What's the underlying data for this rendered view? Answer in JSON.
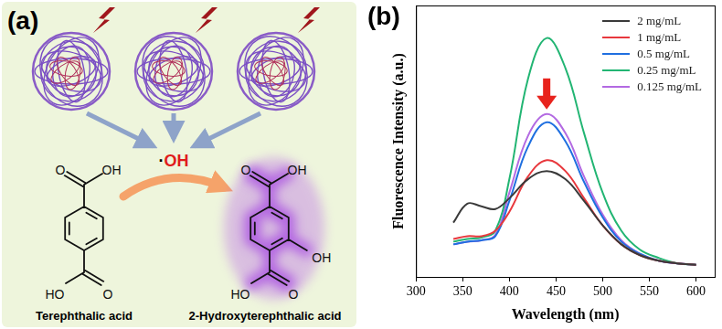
{
  "diagram": {
    "panel_label": "(a)",
    "radical": "·OH",
    "reactant": {
      "name": "Terephthalic acid",
      "atoms": [
        "O",
        "OH",
        "O",
        "HO"
      ]
    },
    "product": {
      "name": "2-Hydroxyterephthalic acid",
      "atoms": [
        "O",
        "OH",
        "O",
        "HO",
        "OH"
      ]
    }
  },
  "chart_data": {
    "type": "line",
    "panel_label": "(b)",
    "x_label": "Wavelength (nm)",
    "y_label": "Fluorescence Intensity (a.u.)",
    "x": [
      340,
      355,
      370,
      385,
      400,
      420,
      440,
      460,
      480,
      500,
      520,
      540,
      560,
      580,
      600
    ],
    "series": [
      {
        "name": "2 mg/mL",
        "color": "#3a3a3a",
        "values": [
          20,
          27,
          26,
          25,
          29,
          36,
          39,
          36,
          28,
          19,
          12,
          8,
          6,
          5,
          4.5
        ]
      },
      {
        "name": "1 mg/mL",
        "color": "#e8383d",
        "values": [
          14,
          15,
          15,
          17,
          24,
          37,
          43,
          39,
          29,
          19,
          12,
          8,
          6,
          5,
          4.5
        ]
      },
      {
        "name": "0.5 mg/mL",
        "color": "#1f6fe0",
        "values": [
          12,
          13,
          13.5,
          15,
          28,
          48,
          57,
          50,
          35,
          22,
          13,
          8.5,
          6,
          5,
          4.5
        ]
      },
      {
        "name": "0.25 mg/mL",
        "color": "#22b573",
        "values": [
          13,
          14,
          14.5,
          17,
          36,
          73,
          88,
          77,
          53,
          31,
          17,
          10,
          7,
          5,
          4.5
        ]
      },
      {
        "name": "0.125 mg/mL",
        "color": "#b36ae2",
        "values": [
          12,
          13,
          13.5,
          15.5,
          31,
          52,
          60,
          53,
          37,
          23,
          13.5,
          8.5,
          6,
          5,
          4.5
        ]
      }
    ],
    "xlim": [
      300,
      620
    ],
    "xticks": [
      300,
      350,
      400,
      450,
      500,
      550,
      600
    ],
    "ylim": [
      0,
      100
    ],
    "tick_labels": "x",
    "grid": false,
    "legend": "top-right"
  }
}
